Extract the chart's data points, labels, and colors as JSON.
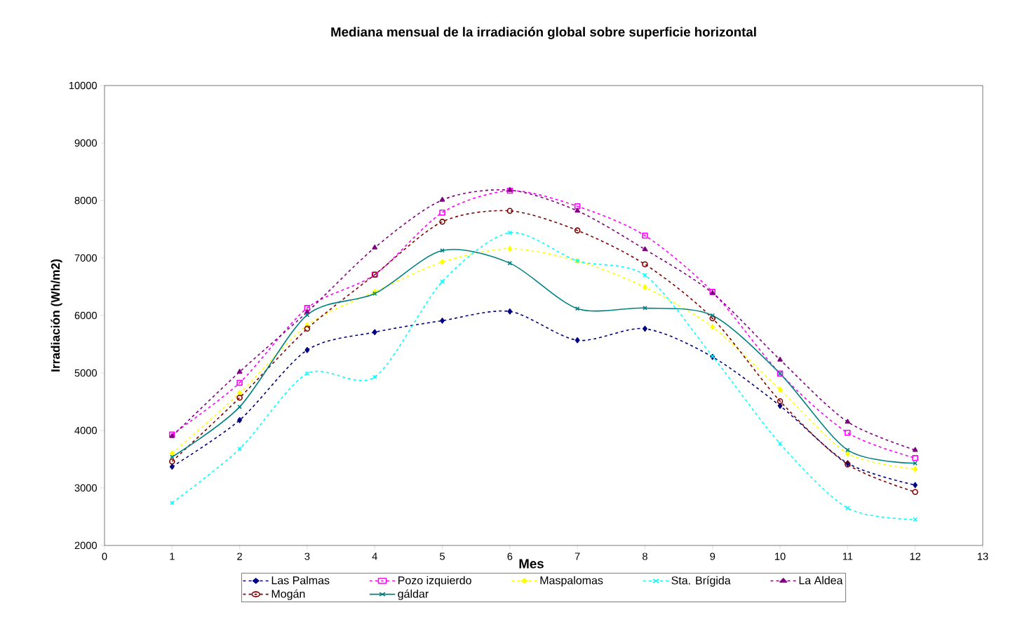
{
  "chart_data": {
    "type": "line",
    "title": "Mediana mensual de la irradiación global sobre superficie horizontal",
    "xlabel": "Mes",
    "ylabel": "Irradiación (Wh/m2)",
    "x": [
      1,
      2,
      3,
      4,
      5,
      6,
      7,
      8,
      9,
      10,
      11,
      12
    ],
    "xlim": [
      0,
      13
    ],
    "xticks": [
      0,
      1,
      2,
      3,
      4,
      5,
      6,
      7,
      8,
      9,
      10,
      11,
      12,
      13
    ],
    "ylim": [
      2000,
      10000
    ],
    "yticks": [
      2000,
      3000,
      4000,
      5000,
      6000,
      7000,
      8000,
      9000,
      10000
    ],
    "grid": false,
    "legend": "bottom",
    "series": [
      {
        "name": "Las Palmas",
        "color": "#000080",
        "marker": "diamond",
        "line_style": "dashed",
        "values": [
          3370,
          4180,
          5400,
          5710,
          5910,
          6070,
          5570,
          5770,
          5280,
          4430,
          3430,
          3050
        ]
      },
      {
        "name": "Pozo izquierdo",
        "color": "#ff00ff",
        "marker": "square",
        "line_style": "dashed",
        "values": [
          3930,
          4830,
          6130,
          6710,
          7790,
          8170,
          7900,
          7390,
          6410,
          4990,
          3960,
          3520
        ]
      },
      {
        "name": "Maspalomas",
        "color": "#ffff00",
        "marker": "diamond",
        "line_style": "dashed",
        "values": [
          3600,
          4650,
          5830,
          6410,
          6930,
          7160,
          6950,
          6490,
          5800,
          4710,
          3600,
          3330
        ]
      },
      {
        "name": "Sta. Brígida",
        "color": "#00ffff",
        "marker": "cross",
        "line_style": "dashed",
        "values": [
          2740,
          3680,
          4990,
          4930,
          6590,
          7440,
          6950,
          6700,
          5290,
          3770,
          2650,
          2450
        ]
      },
      {
        "name": "La Aldea",
        "color": "#800080",
        "marker": "triangle",
        "line_style": "dashed",
        "values": [
          3900,
          5020,
          6060,
          7180,
          8010,
          8180,
          7820,
          7150,
          6390,
          5230,
          4150,
          3660
        ]
      },
      {
        "name": "Mogán",
        "color": "#800000",
        "marker": "circle",
        "line_style": "dashed",
        "values": [
          3460,
          4570,
          5770,
          6710,
          7630,
          7820,
          7480,
          6890,
          5950,
          4510,
          3410,
          2930
        ]
      },
      {
        "name": "gáldar",
        "color": "#008080",
        "marker": "cross",
        "line_style": "solid",
        "values": [
          3540,
          4410,
          6010,
          6380,
          7130,
          6910,
          6120,
          6130,
          6000,
          4990,
          3660,
          3430
        ]
      }
    ]
  }
}
